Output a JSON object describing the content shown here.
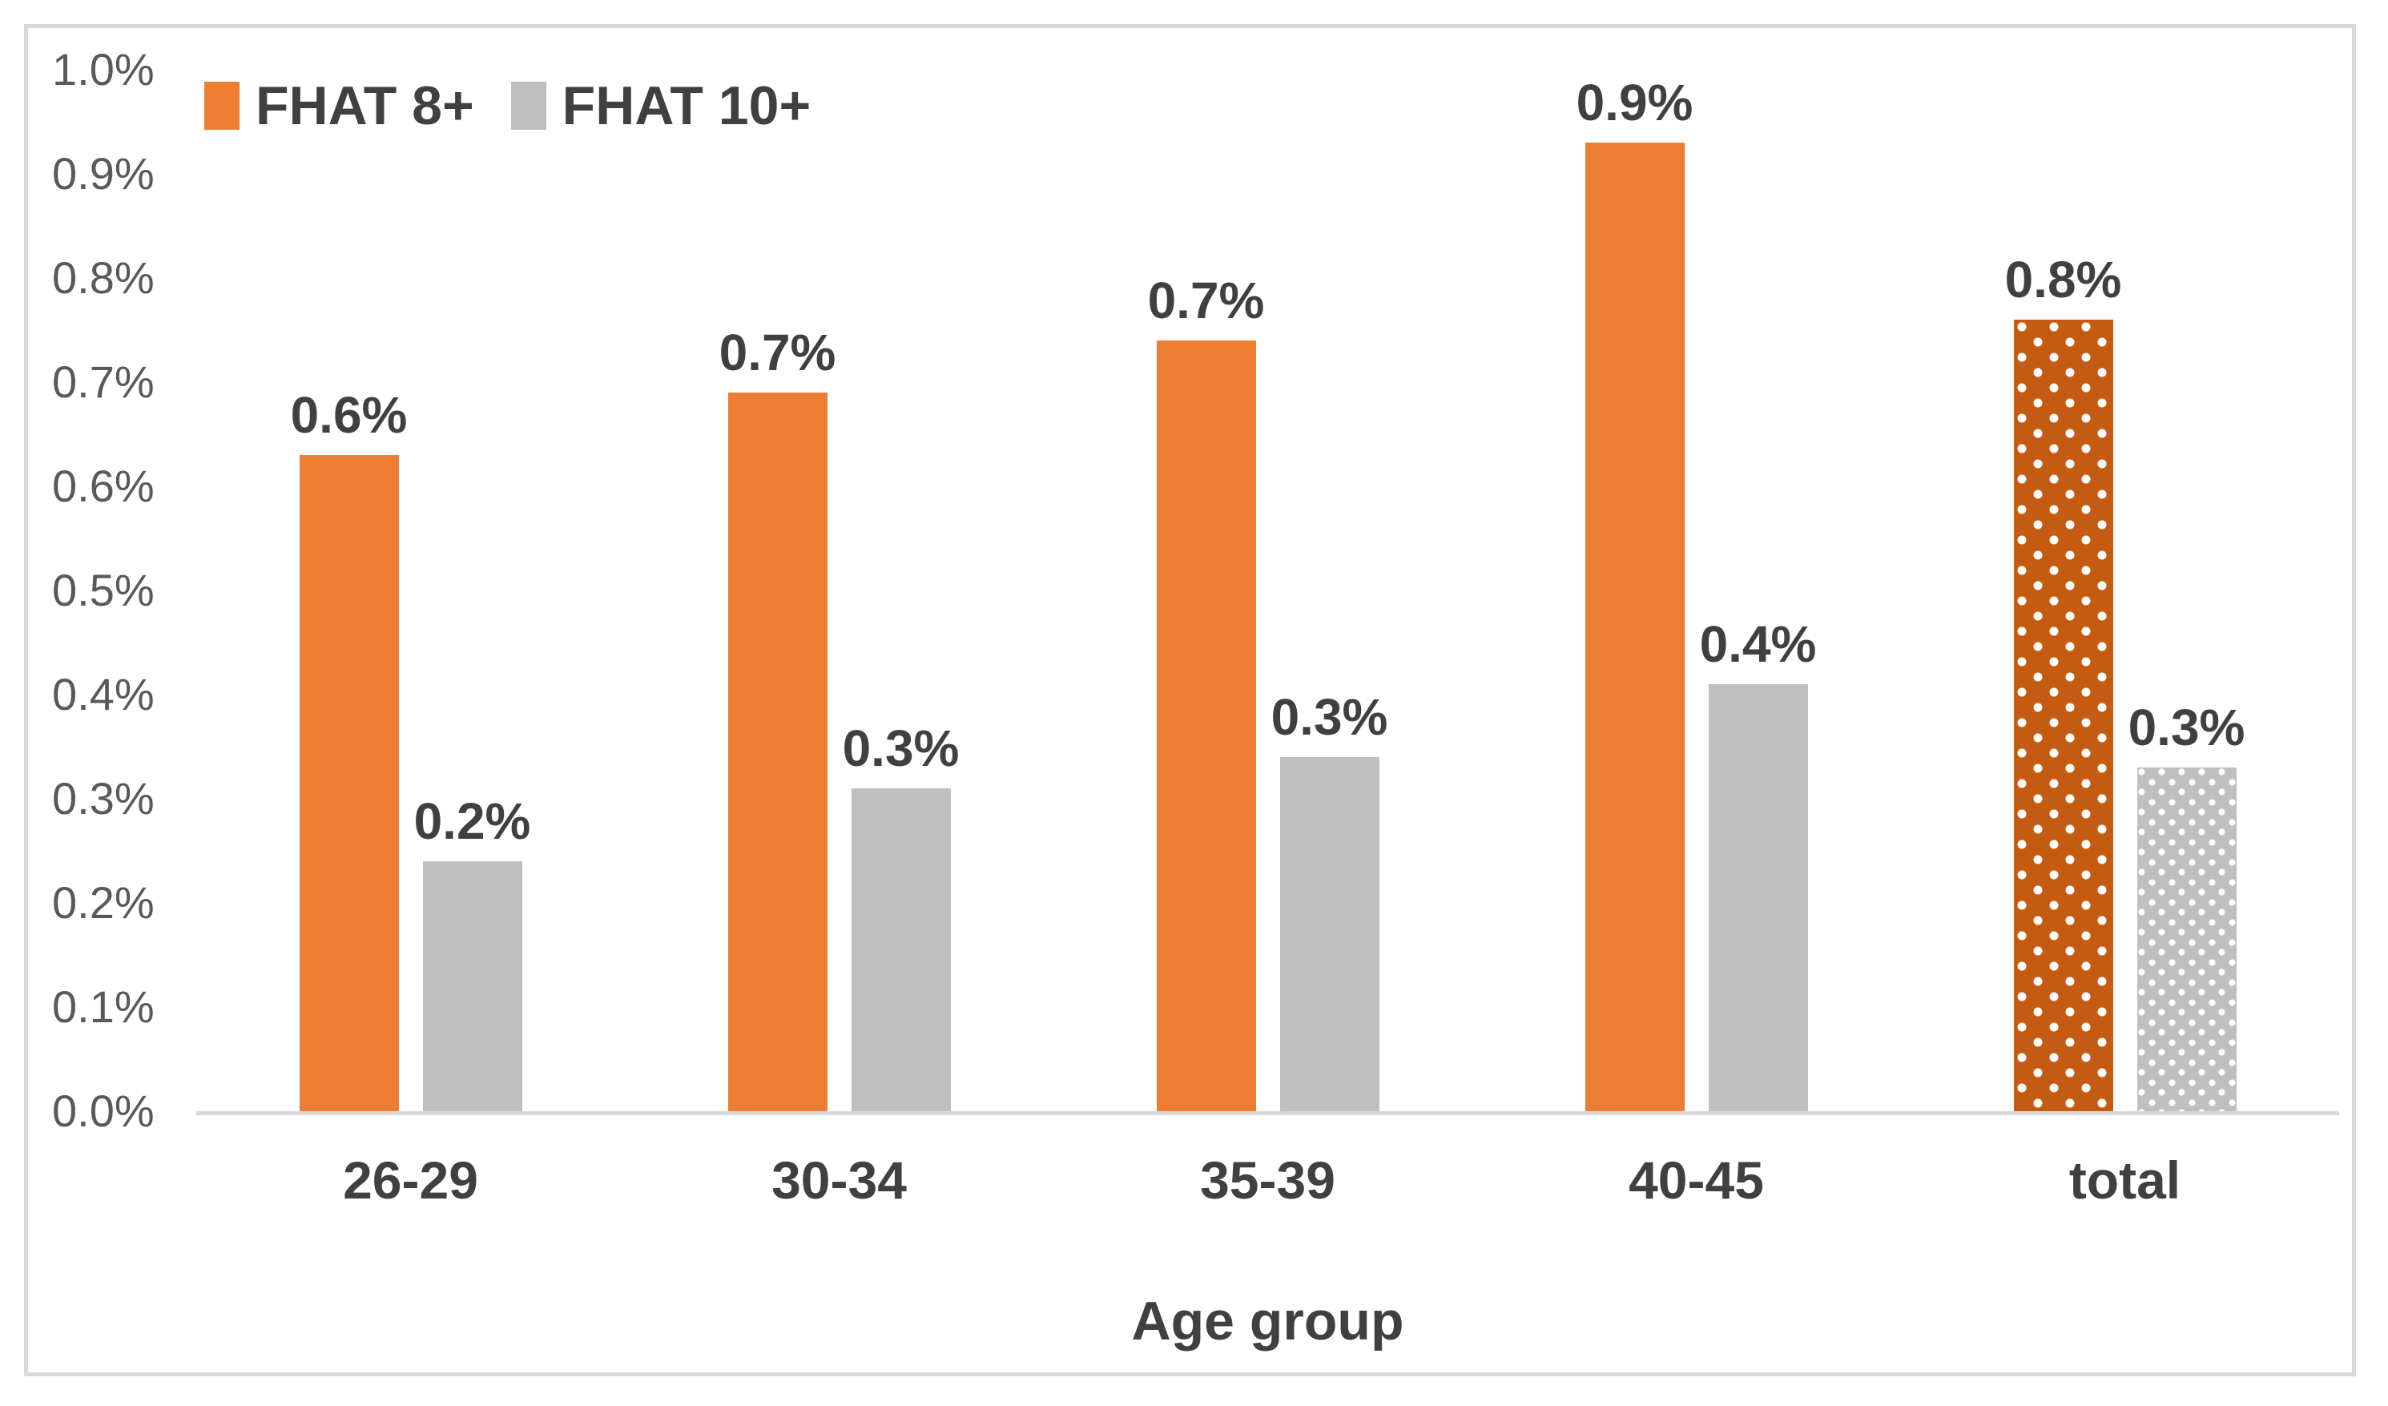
{
  "chart_data": {
    "type": "bar",
    "title": "",
    "xlabel": "Age group",
    "ylabel": "",
    "categories": [
      "26-29",
      "30-34",
      "35-39",
      "40-45",
      "total"
    ],
    "series": [
      {
        "name": "FHAT 8+",
        "color": "#ED7D31",
        "total_bar_color": "#C55A11",
        "values": [
          0.63,
          0.69,
          0.74,
          0.93,
          0.76
        ],
        "data_labels": [
          "0.6%",
          "0.7%",
          "0.7%",
          "0.9%",
          "0.8%"
        ]
      },
      {
        "name": "FHAT 10+",
        "color": "#BFBFBF",
        "total_bar_color": "#BFBFBF",
        "values": [
          0.24,
          0.31,
          0.34,
          0.41,
          0.33
        ],
        "data_labels": [
          "0.2%",
          "0.3%",
          "0.3%",
          "0.4%",
          "0.3%"
        ]
      }
    ],
    "ylim": [
      0,
      1.0
    ],
    "ytick_step": 0.1,
    "yticks": [
      "0.0%",
      "0.1%",
      "0.2%",
      "0.3%",
      "0.4%",
      "0.5%",
      "0.6%",
      "0.7%",
      "0.8%",
      "0.9%",
      "1.0%"
    ],
    "grid": false,
    "legend_position": "top-left",
    "patterned_category": "total",
    "pattern_style": "white dots on darker fill for the total category bars"
  },
  "legend": {
    "items": [
      {
        "label": "FHAT 8+",
        "swatch_color": "#ED7D31"
      },
      {
        "label": "FHAT 10+",
        "swatch_color": "#BFBFBF"
      }
    ]
  },
  "x_axis": {
    "title": "Age group"
  },
  "colors": {
    "frame_and_axis": "#D9D9D9",
    "tick_text": "#595959",
    "label_text": "#404040",
    "background": "#FFFFFF"
  }
}
